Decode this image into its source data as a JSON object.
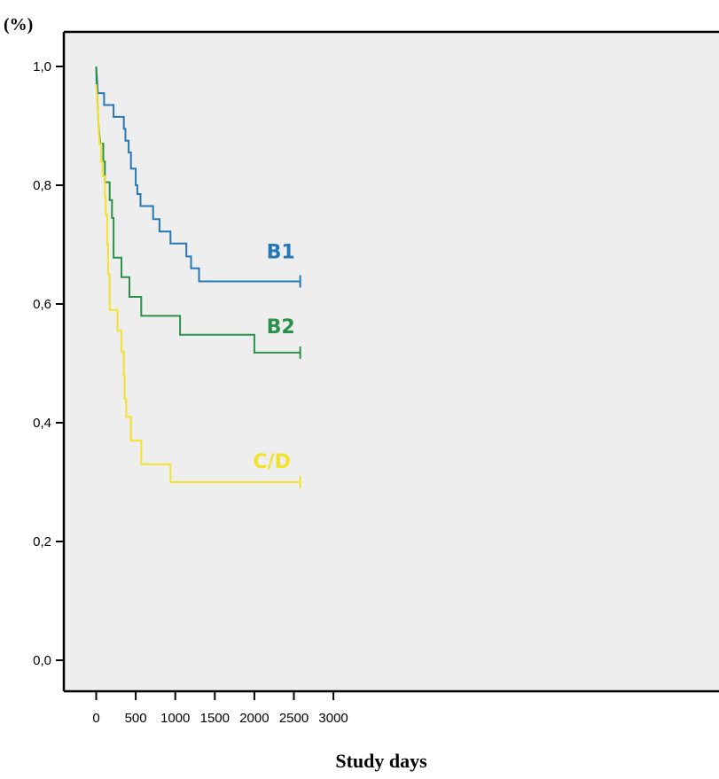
{
  "chart_data": {
    "type": "line",
    "subtype": "kaplan-meier step curves",
    "title": "",
    "xlabel": "Study days",
    "ylabel": "(%)",
    "xlim": [
      -150,
      3100
    ],
    "ylim": [
      -0.04,
      1.06
    ],
    "x_ticks": [
      0,
      500,
      1000,
      1500,
      2000,
      2500,
      3000
    ],
    "y_ticks": [
      0.0,
      0.2,
      0.4,
      0.6,
      0.8,
      1.0
    ],
    "x_tick_labels": [
      "0",
      "500",
      "1000",
      "1500",
      "2000",
      "2500",
      "3000"
    ],
    "y_tick_labels": [
      "0,0",
      "0,2",
      "0,4",
      "0,6",
      "0,8",
      "1,0"
    ],
    "grid": false,
    "background": "#eeeeee",
    "series": [
      {
        "name": "B1",
        "color": "#2678b4",
        "censor_x": 2580,
        "points": [
          [
            0,
            1.0
          ],
          [
            10,
            0.98
          ],
          [
            20,
            0.955
          ],
          [
            100,
            0.955
          ],
          [
            100,
            0.935
          ],
          [
            220,
            0.935
          ],
          [
            220,
            0.915
          ],
          [
            350,
            0.915
          ],
          [
            350,
            0.895
          ],
          [
            370,
            0.895
          ],
          [
            370,
            0.875
          ],
          [
            410,
            0.875
          ],
          [
            410,
            0.855
          ],
          [
            440,
            0.855
          ],
          [
            440,
            0.828
          ],
          [
            500,
            0.828
          ],
          [
            500,
            0.8
          ],
          [
            520,
            0.8
          ],
          [
            520,
            0.785
          ],
          [
            560,
            0.785
          ],
          [
            560,
            0.765
          ],
          [
            720,
            0.765
          ],
          [
            720,
            0.743
          ],
          [
            800,
            0.743
          ],
          [
            800,
            0.722
          ],
          [
            940,
            0.722
          ],
          [
            940,
            0.702
          ],
          [
            1140,
            0.702
          ],
          [
            1140,
            0.68
          ],
          [
            1200,
            0.68
          ],
          [
            1200,
            0.66
          ],
          [
            1300,
            0.66
          ],
          [
            1300,
            0.638
          ],
          [
            2580,
            0.638
          ]
        ]
      },
      {
        "name": "B2",
        "color": "#2a9148",
        "censor_x": 2580,
        "points": [
          [
            0,
            1.0
          ],
          [
            5,
            0.97
          ],
          [
            20,
            0.93
          ],
          [
            30,
            0.9
          ],
          [
            50,
            0.87
          ],
          [
            90,
            0.87
          ],
          [
            90,
            0.84
          ],
          [
            110,
            0.84
          ],
          [
            110,
            0.805
          ],
          [
            170,
            0.805
          ],
          [
            170,
            0.775
          ],
          [
            200,
            0.775
          ],
          [
            200,
            0.745
          ],
          [
            220,
            0.745
          ],
          [
            220,
            0.678
          ],
          [
            320,
            0.678
          ],
          [
            320,
            0.645
          ],
          [
            420,
            0.645
          ],
          [
            420,
            0.612
          ],
          [
            570,
            0.612
          ],
          [
            570,
            0.58
          ],
          [
            1060,
            0.58
          ],
          [
            1060,
            0.548
          ],
          [
            2000,
            0.548
          ],
          [
            2000,
            0.518
          ],
          [
            2580,
            0.518
          ]
        ]
      },
      {
        "name": "C/D",
        "color": "#f2e22c",
        "censor_x": 2580,
        "points": [
          [
            0,
            0.97
          ],
          [
            20,
            0.93
          ],
          [
            30,
            0.9
          ],
          [
            40,
            0.87
          ],
          [
            60,
            0.87
          ],
          [
            60,
            0.84
          ],
          [
            80,
            0.84
          ],
          [
            80,
            0.815
          ],
          [
            110,
            0.815
          ],
          [
            110,
            0.78
          ],
          [
            120,
            0.78
          ],
          [
            120,
            0.75
          ],
          [
            140,
            0.75
          ],
          [
            140,
            0.7
          ],
          [
            150,
            0.7
          ],
          [
            150,
            0.65
          ],
          [
            170,
            0.65
          ],
          [
            170,
            0.59
          ],
          [
            270,
            0.59
          ],
          [
            270,
            0.555
          ],
          [
            320,
            0.555
          ],
          [
            320,
            0.52
          ],
          [
            350,
            0.52
          ],
          [
            350,
            0.48
          ],
          [
            360,
            0.48
          ],
          [
            360,
            0.44
          ],
          [
            380,
            0.44
          ],
          [
            380,
            0.41
          ],
          [
            440,
            0.41
          ],
          [
            440,
            0.37
          ],
          [
            570,
            0.37
          ],
          [
            570,
            0.33
          ],
          [
            940,
            0.33
          ],
          [
            940,
            0.3
          ],
          [
            2580,
            0.3
          ]
        ]
      }
    ],
    "legend_placement": "direct labels at the right end of each curve"
  }
}
